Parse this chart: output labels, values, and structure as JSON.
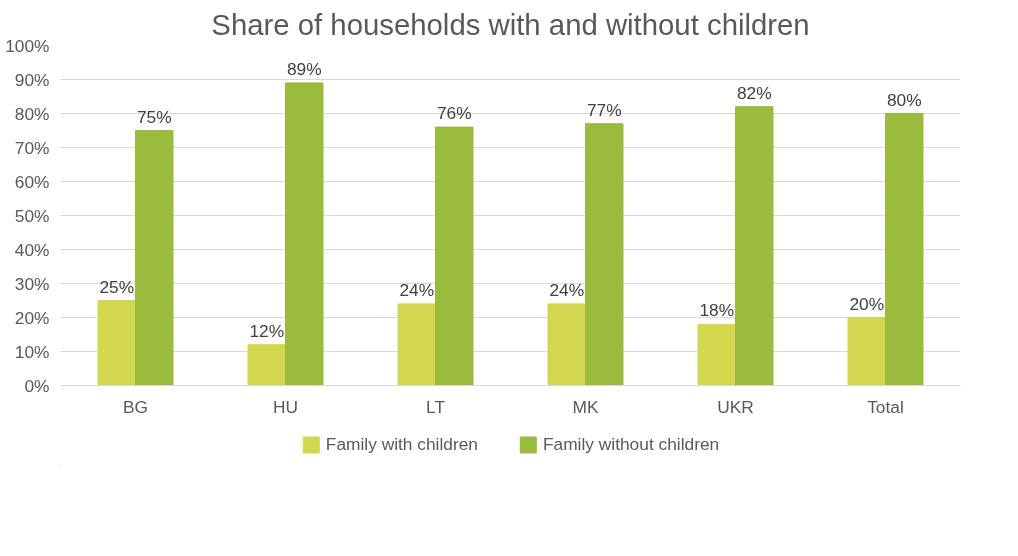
{
  "chart_data": {
    "type": "bar",
    "title": "Share of households with and without children",
    "categories": [
      "BG",
      "HU",
      "LT",
      "MK",
      "UKR",
      "Total"
    ],
    "series": [
      {
        "name": "Family with children",
        "color": "#d3d74f",
        "values": [
          25,
          12,
          24,
          24,
          18,
          20
        ]
      },
      {
        "name": "Family without children",
        "color": "#9bbb3e",
        "values": [
          75,
          89,
          76,
          77,
          82,
          80
        ]
      }
    ],
    "ylim": [
      0,
      100
    ],
    "yticks": [
      {
        "value": 0,
        "label": "0%"
      },
      {
        "value": 10,
        "label": "10%"
      },
      {
        "value": 20,
        "label": "20%"
      },
      {
        "value": 30,
        "label": "30%"
      },
      {
        "value": 40,
        "label": "40%"
      },
      {
        "value": 50,
        "label": "50%"
      },
      {
        "value": 60,
        "label": "60%"
      },
      {
        "value": 70,
        "label": "70%"
      },
      {
        "value": 80,
        "label": "80%"
      },
      {
        "value": 90,
        "label": "90%"
      },
      {
        "value": 100,
        "label": "100%"
      }
    ],
    "value_labels": [
      [
        "25%",
        "12%",
        "24%",
        "24%",
        "18%",
        "20%"
      ],
      [
        "75%",
        "89%",
        "76%",
        "77%",
        "82%",
        "80%"
      ]
    ],
    "grid": "y",
    "legend": "bottom"
  }
}
